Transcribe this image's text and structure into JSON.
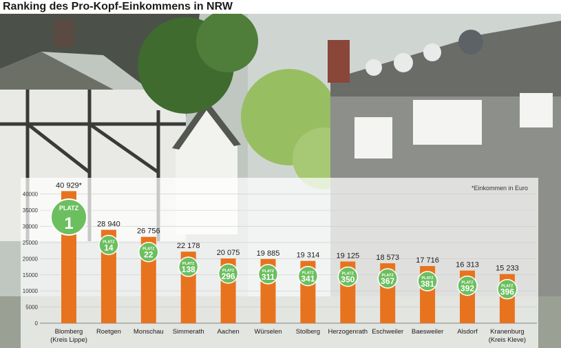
{
  "title": "Ranking des Pro-Kopf-Einkommens in NRW",
  "note": "*Einkommen in Euro",
  "colors": {
    "bar": "#e8731e",
    "badge": "#6cbf5f",
    "text": "#1a1a1a"
  },
  "chart_data": {
    "type": "bar",
    "title": "Ranking des Pro-Kopf-Einkommens in NRW",
    "categories": [
      "Blomberg\n(Kreis Lippe)",
      "Roetgen",
      "Monschau",
      "Simmerath",
      "Aachen",
      "Würselen",
      "Stolberg",
      "Herzogenrath",
      "Eschweiler",
      "Baesweiler",
      "Alsdorf",
      "Kranenburg\n(Kreis Kleve)"
    ],
    "values": [
      40929,
      28940,
      26756,
      22178,
      20075,
      19885,
      19314,
      19125,
      18573,
      17716,
      16313,
      15233
    ],
    "value_labels": [
      "40 929*",
      "28 940",
      "26 756",
      "22 178",
      "20 075",
      "19 885",
      "19 314",
      "19 125",
      "18 573",
      "17 716",
      "16 313",
      "15 233"
    ],
    "rank_prefix": "PLATZ",
    "ranks": [
      "1",
      "14",
      "22",
      "138",
      "296",
      "311",
      "341",
      "350",
      "367",
      "381",
      "392",
      "396"
    ],
    "yticks": [
      "0",
      "5000",
      "10000",
      "15000",
      "20000",
      "25000",
      "30000",
      "35000",
      "40000"
    ],
    "ylim": [
      0,
      42500
    ],
    "grid": true,
    "xlabel": "",
    "ylabel": ""
  }
}
